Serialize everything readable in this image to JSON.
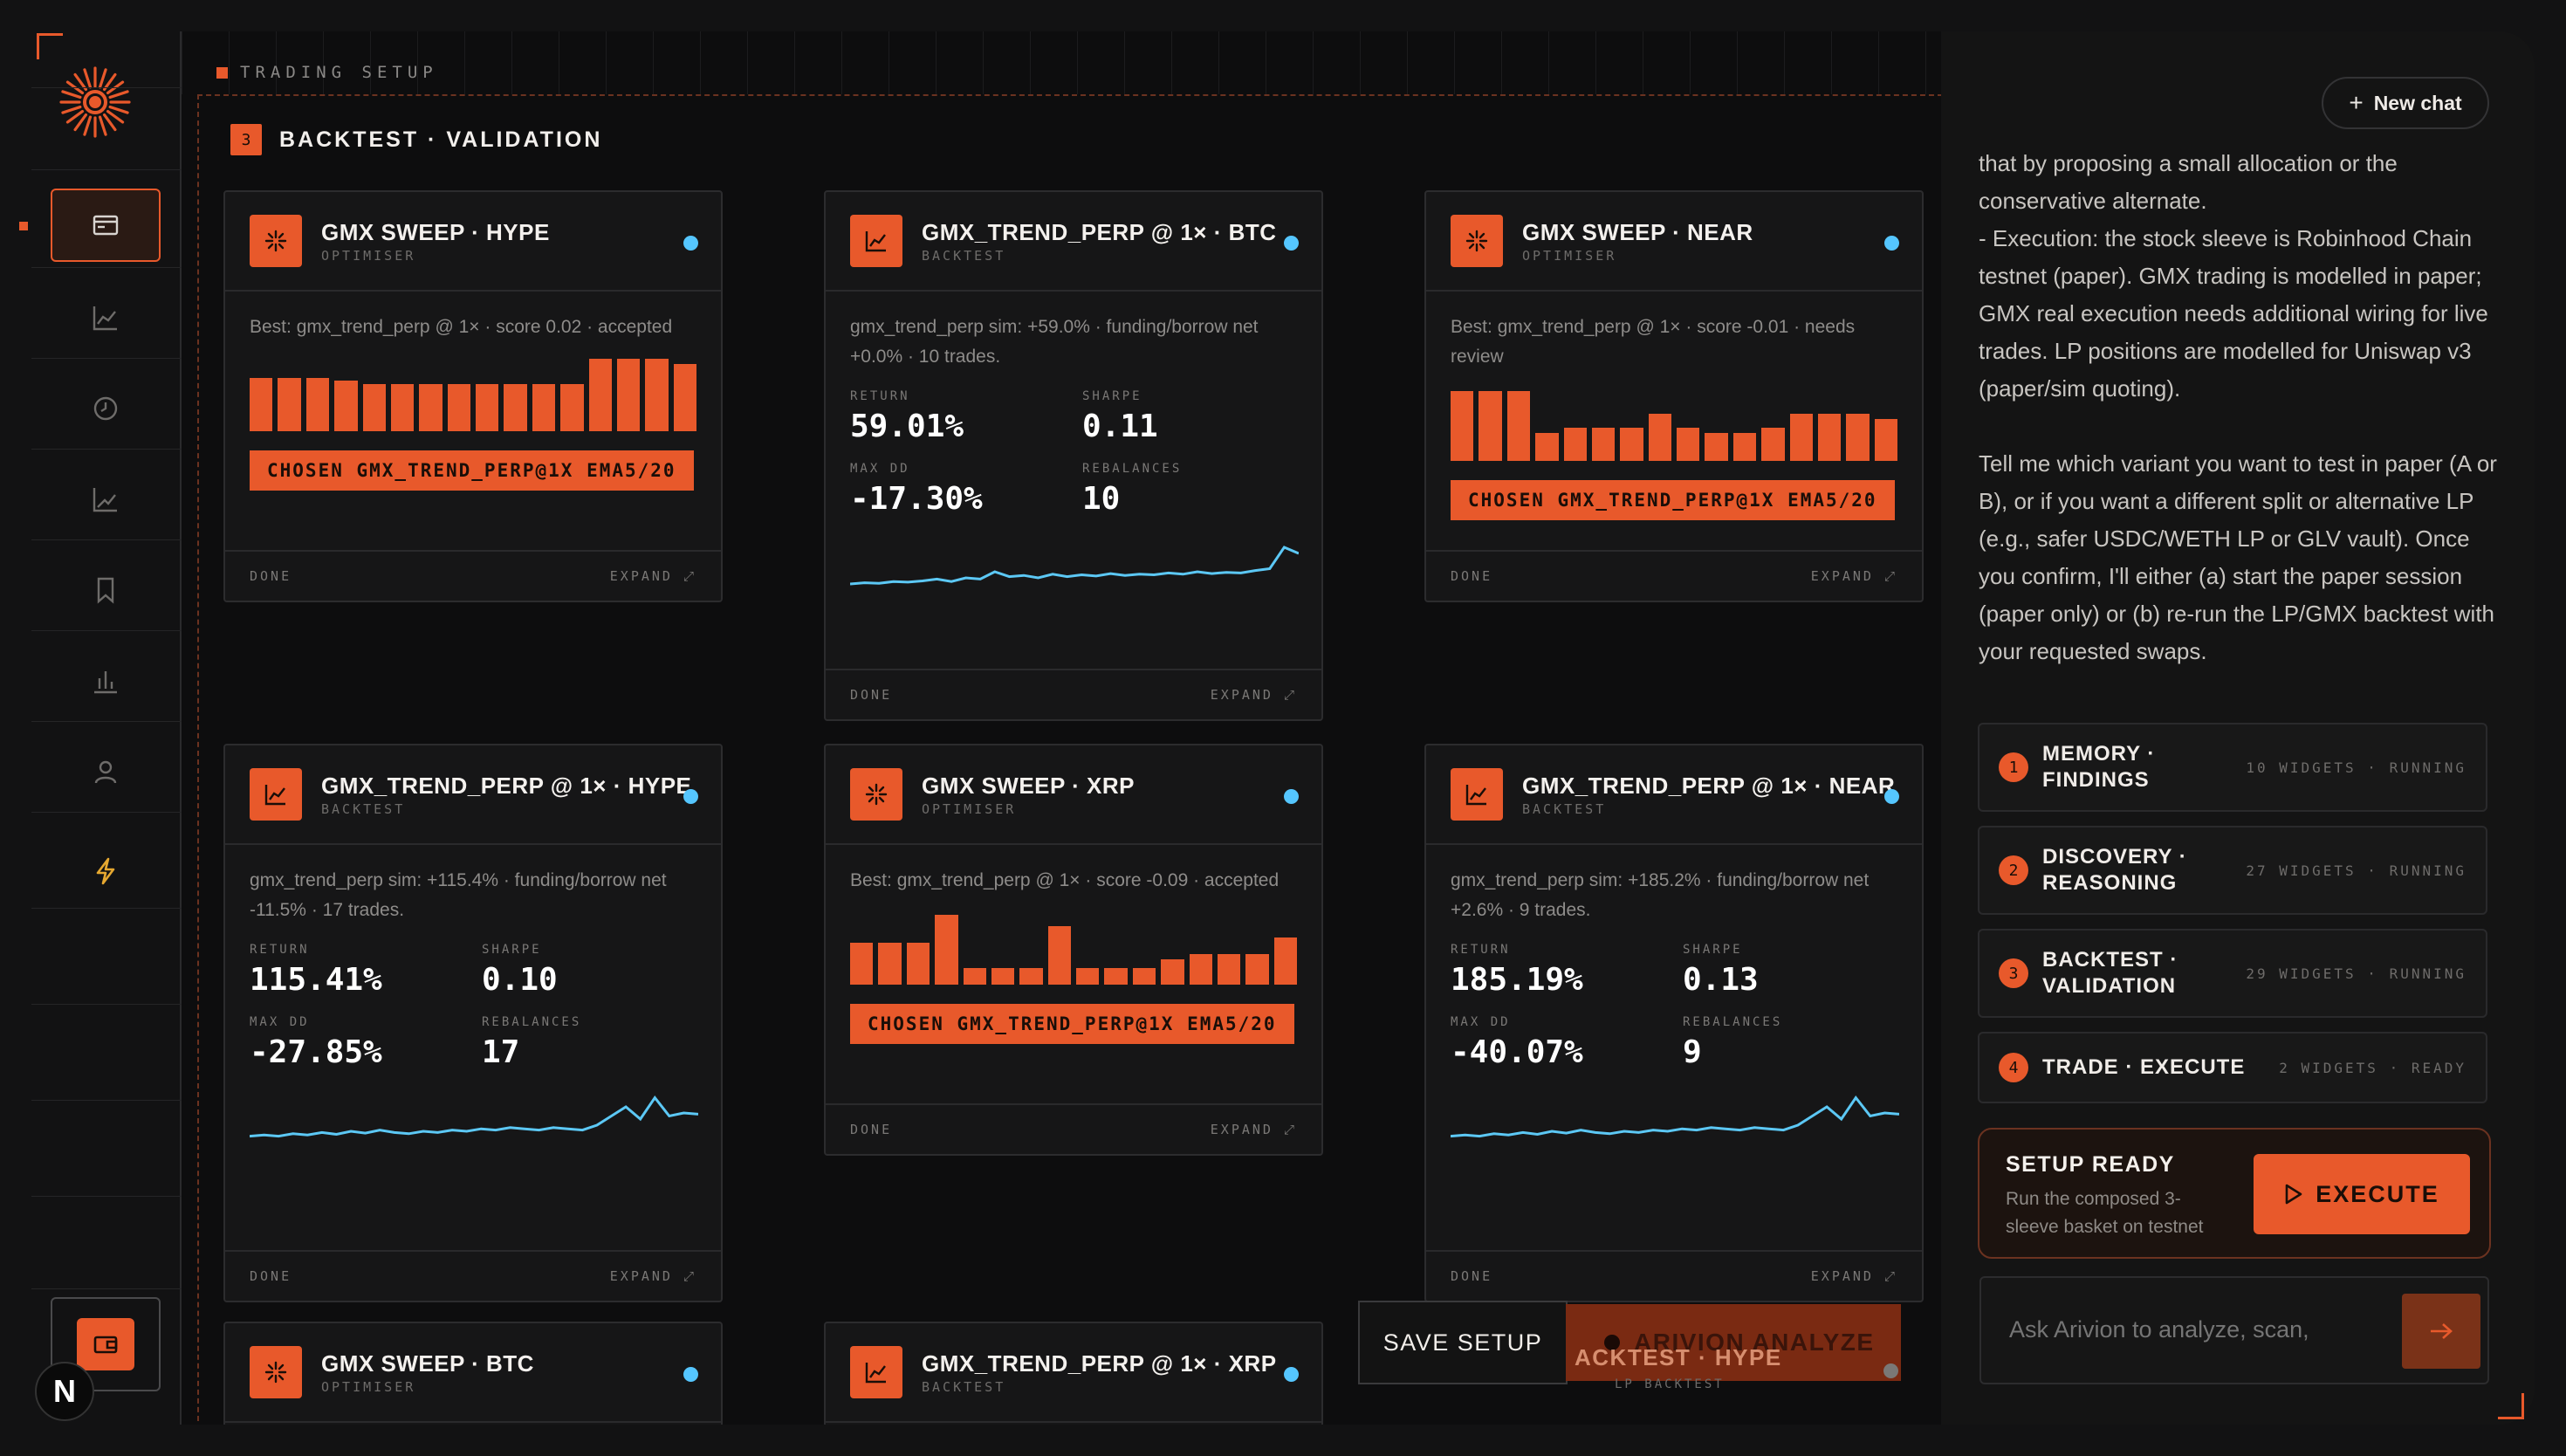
{
  "app": {
    "section_label": "TRADING SETUP",
    "section_number": "3",
    "section_title": "BACKTEST · VALIDATION"
  },
  "sidebar": {
    "items": [
      {
        "icon": "credit-card-icon"
      },
      {
        "icon": "line-chart-icon"
      },
      {
        "icon": "clock-icon"
      },
      {
        "icon": "trend-chart-icon"
      },
      {
        "icon": "bookmark-icon"
      },
      {
        "icon": "bar-chart-icon"
      },
      {
        "icon": "user-icon"
      },
      {
        "icon": "lightning-icon"
      }
    ],
    "badge": "N"
  },
  "colors": {
    "accent": "#e8592b",
    "status_dot": "#55c6ff",
    "sparkline": "#5cc8f5"
  },
  "cards": [
    {
      "title": "GMX SWEEP · HYPE",
      "subtitle": "OPTIMISER",
      "kind": "optimiser",
      "desc": "Best: gmx_trend_perp @ 1× · score 0.02 · accepted",
      "bars": [
        0.38,
        0.38,
        0.38,
        0.36,
        0.34,
        0.34,
        0.34,
        0.34,
        0.34,
        0.34,
        0.34,
        0.34,
        0.52,
        0.52,
        0.52,
        0.48
      ],
      "chosen": "CHOSEN GMX_TREND_PERP@1X EMA5/20",
      "foot_left": "DONE",
      "foot_right": "EXPAND ⤢"
    },
    {
      "title": "GMX_TREND_PERP @ 1× · BTC",
      "subtitle": "BACKTEST",
      "kind": "backtest",
      "desc": "gmx_trend_perp sim: +59.0% · funding/borrow net +0.0% · 10 trades.",
      "labels": {
        "return": "RETURN",
        "sharpe": "SHARPE",
        "maxdd": "MAX DD",
        "rebalances": "REBALANCES"
      },
      "stats": {
        "return": "59.01%",
        "sharpe": "0.11",
        "maxdd": "-17.30%",
        "rebalances": "10"
      },
      "spark": [
        0.1,
        0.12,
        0.11,
        0.14,
        0.13,
        0.15,
        0.18,
        0.14,
        0.2,
        0.18,
        0.3,
        0.22,
        0.24,
        0.2,
        0.26,
        0.22,
        0.25,
        0.23,
        0.27,
        0.24,
        0.26,
        0.25,
        0.28,
        0.26,
        0.3,
        0.27,
        0.29,
        0.28,
        0.32,
        0.35,
        0.7,
        0.6
      ],
      "foot_left": "DONE",
      "foot_right": "EXPAND ⤢"
    },
    {
      "title": "GMX SWEEP · NEAR",
      "subtitle": "OPTIMISER",
      "kind": "optimiser",
      "desc": "Best: gmx_trend_perp @ 1× · score -0.01 · needs review",
      "bars": [
        0.5,
        0.5,
        0.5,
        0.2,
        0.24,
        0.24,
        0.24,
        0.34,
        0.24,
        0.2,
        0.2,
        0.24,
        0.34,
        0.34,
        0.34,
        0.3
      ],
      "chosen": "CHOSEN GMX_TREND_PERP@1X EMA5/20",
      "foot_left": "DONE",
      "foot_right": "EXPAND ⤢"
    },
    {
      "title": "GMX_TREND_PERP @ 1× · HYPE",
      "subtitle": "BACKTEST",
      "kind": "backtest",
      "desc": "gmx_trend_perp sim: +115.4% · funding/borrow net -11.5% · 17 trades.",
      "labels": {
        "return": "RETURN",
        "sharpe": "SHARPE",
        "maxdd": "MAX DD",
        "rebalances": "REBALANCES"
      },
      "stats": {
        "return": "115.41%",
        "sharpe": "0.10",
        "maxdd": "-27.85%",
        "rebalances": "17"
      },
      "spark": [
        0.12,
        0.14,
        0.12,
        0.16,
        0.14,
        0.18,
        0.15,
        0.2,
        0.17,
        0.22,
        0.18,
        0.16,
        0.2,
        0.18,
        0.22,
        0.2,
        0.24,
        0.22,
        0.26,
        0.24,
        0.22,
        0.26,
        0.24,
        0.22,
        0.3,
        0.45,
        0.6,
        0.4,
        0.75,
        0.45,
        0.5,
        0.48
      ],
      "foot_left": "DONE",
      "foot_right": "EXPAND ⤢"
    },
    {
      "title": "GMX SWEEP · XRP",
      "subtitle": "OPTIMISER",
      "kind": "optimiser",
      "desc": "Best: gmx_trend_perp @ 1× · score -0.09 · accepted",
      "bars": [
        0.3,
        0.3,
        0.3,
        0.5,
        0.12,
        0.12,
        0.12,
        0.42,
        0.12,
        0.12,
        0.12,
        0.18,
        0.22,
        0.22,
        0.22,
        0.34
      ],
      "chosen": "CHOSEN GMX_TREND_PERP@1X EMA5/20",
      "foot_left": "DONE",
      "foot_right": "EXPAND ⤢"
    },
    {
      "title": "GMX_TREND_PERP @ 1× · NEAR",
      "subtitle": "BACKTEST",
      "kind": "backtest",
      "desc": "gmx_trend_perp sim: +185.2% · funding/borrow net +2.6% · 9 trades.",
      "labels": {
        "return": "RETURN",
        "sharpe": "SHARPE",
        "maxdd": "MAX DD",
        "rebalances": "REBALANCES"
      },
      "stats": {
        "return": "185.19%",
        "sharpe": "0.13",
        "maxdd": "-40.07%",
        "rebalances": "9"
      },
      "spark": [
        0.12,
        0.14,
        0.12,
        0.16,
        0.14,
        0.18,
        0.15,
        0.2,
        0.17,
        0.22,
        0.18,
        0.16,
        0.2,
        0.18,
        0.22,
        0.2,
        0.24,
        0.22,
        0.26,
        0.24,
        0.22,
        0.26,
        0.24,
        0.22,
        0.3,
        0.45,
        0.6,
        0.4,
        0.75,
        0.45,
        0.5,
        0.48
      ],
      "foot_left": "DONE",
      "foot_right": "EXPAND ⤢"
    },
    {
      "title": "GMX SWEEP · BTC",
      "subtitle": "OPTIMISER",
      "kind": "optimiser",
      "foot_left": "",
      "foot_right": ""
    },
    {
      "title": "GMX_TREND_PERP @ 1× · XRP",
      "subtitle": "BACKTEST",
      "kind": "backtest",
      "foot_left": "",
      "foot_right": ""
    }
  ],
  "chat": {
    "new_chat": "New chat",
    "paragraphs": [
      "that by proposing a small allocation or the conservative alternate.\n- Execution: the stock sleeve is Robinhood Chain testnet (paper). GMX trading is modelled in paper; GMX real execution needs additional wiring for live trades. LP positions are modelled for Uniswap v3 (paper/sim quoting).",
      "Tell me which variant you want to test in paper (A or B), or if you want a different split or alternative LP (e.g., safer USDC/WETH LP or GLV vault). Once you confirm, I'll either (a) start the paper session (paper only) or (b) re-run the LP/GMX backtest with your requested swaps."
    ],
    "steps": [
      {
        "num": "1",
        "title": "MEMORY · FINDINGS",
        "meta": "10 WIDGETS · RUNNING"
      },
      {
        "num": "2",
        "title": "DISCOVERY · REASONING",
        "meta": "27 WIDGETS · RUNNING"
      },
      {
        "num": "3",
        "title": "BACKTEST · VALIDATION",
        "meta": "29 WIDGETS · RUNNING"
      },
      {
        "num": "4",
        "title": "TRADE · EXECUTE",
        "meta": "2 WIDGETS · READY"
      }
    ],
    "ready_title": "SETUP READY",
    "ready_desc": "Run the composed 3-sleeve basket on testnet",
    "execute": "EXECUTE",
    "ask_placeholder": "Ask Arivion to analyze, scan,"
  },
  "float_bar": {
    "save": "SAVE SETUP",
    "analyze": "ARIVION ANALYZE",
    "ghost": "ACKTEST · HYPE",
    "ghost_sub": "LP BACKTEST"
  }
}
